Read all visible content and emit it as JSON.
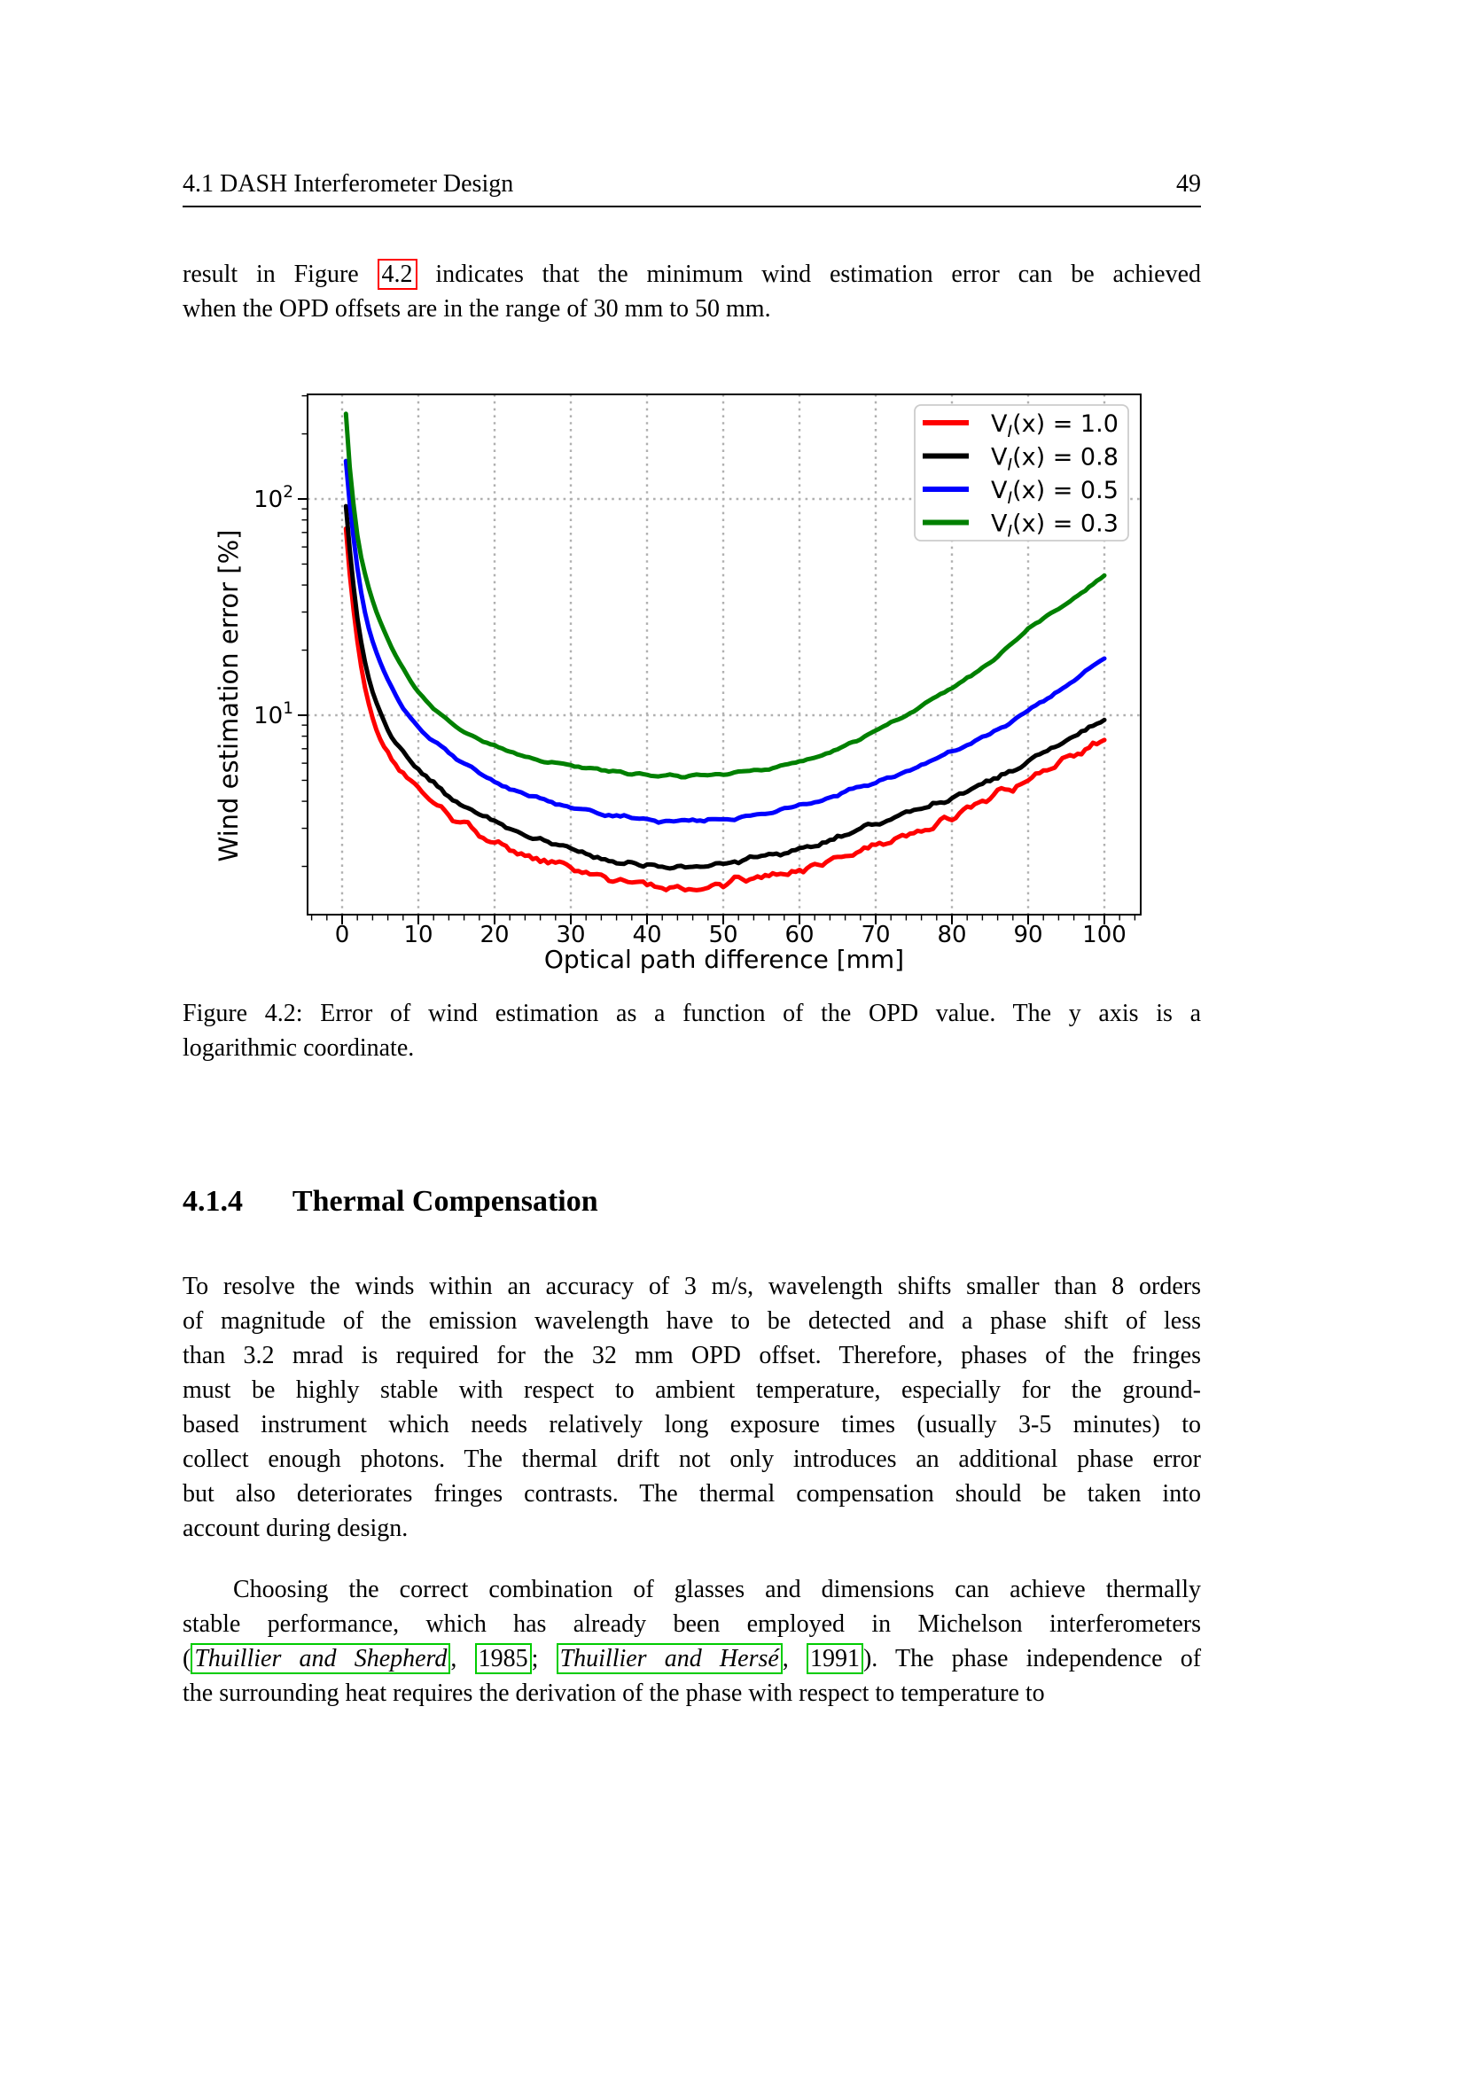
{
  "header": {
    "title": "4.1 DASH Interferometer Design",
    "page_number": "49"
  },
  "intro": {
    "lines": [
      {
        "segments": [
          {
            "text": "result in Figure "
          },
          {
            "text": "4.2",
            "style": "redbox"
          },
          {
            "text": " indicates that the minimum wind estimation error can be achieved"
          }
        ]
      },
      {
        "text": "when the OPD offsets are in the range of 30 mm to 50 mm.",
        "last": true
      }
    ]
  },
  "figure": {
    "caption_lines": [
      {
        "text": "Figure 4.2: Error of wind estimation as a function of the OPD value. The y axis is a"
      },
      {
        "text": "logarithmic coordinate.",
        "last": true
      }
    ]
  },
  "section": {
    "number": "4.1.4",
    "title": "Thermal Compensation"
  },
  "body": {
    "paragraph1": {
      "lines": [
        {
          "text": "To resolve the winds within an accuracy of 3 m/s, wavelength shifts smaller than 8 orders"
        },
        {
          "text": "of magnitude of the emission wavelength have to be detected and a phase shift of less"
        },
        {
          "text": "than 3.2 mrad is required for the 32 mm OPD offset. Therefore, phases of the fringes"
        },
        {
          "text": "must be highly stable with respect to ambient temperature, especially for the ground-"
        },
        {
          "text": "based instrument which needs relatively long exposure times (usually 3-5 minutes) to"
        },
        {
          "text": "collect enough photons. The thermal drift not only introduces an additional phase error"
        },
        {
          "text": "but also deteriorates fringes contrasts. The thermal compensation should be taken into"
        },
        {
          "text": "account during design.",
          "last": true
        }
      ]
    },
    "paragraph2": {
      "lines": [
        {
          "text": "Choosing the correct combination of glasses and dimensions can achieve thermally",
          "indent": true
        },
        {
          "text": "stable performance, which has already been employed in Michelson interferometers"
        },
        {
          "segments": [
            {
              "text": "("
            },
            {
              "text": "Thuillier and Shepherd",
              "style": "greenbox italic"
            },
            {
              "text": ", "
            },
            {
              "text": "1985",
              "style": "greenbox"
            },
            {
              "text": "; "
            },
            {
              "text": "Thuillier and Hersé",
              "style": "greenbox italic"
            },
            {
              "text": ", "
            },
            {
              "text": "1991",
              "style": "greenbox"
            },
            {
              "text": "). The phase independence of"
            }
          ]
        },
        {
          "text": "the surrounding heat requires the derivation of the phase with respect to temperature to",
          "last": true
        }
      ]
    }
  },
  "chart_data": {
    "type": "line",
    "title": "",
    "xlabel": "Optical path difference [mm]",
    "ylabel": "Wind estimation error [%]",
    "yscale": "log",
    "xlim": [
      -4.5,
      104.8
    ],
    "ylim": [
      1.17,
      306
    ],
    "x_ticks": [
      0,
      10,
      20,
      30,
      40,
      50,
      60,
      70,
      80,
      90,
      100
    ],
    "x_minor_step": 2,
    "y_ticks": [
      10,
      100
    ],
    "grid": true,
    "grid_color": "#b0b0b0",
    "legend_position": "upper right",
    "x": [
      0.5,
      1,
      2,
      3,
      4,
      5,
      6,
      8,
      10,
      12.5,
      15,
      17.5,
      20,
      25,
      30,
      35,
      40,
      45,
      50,
      55,
      60,
      65,
      70,
      75,
      80,
      85,
      90,
      95,
      100
    ],
    "series": [
      {
        "name": "V_I(x) = 1.0",
        "color": "#ff0000",
        "noise": 0.022,
        "y": [
          73,
          45,
          22,
          13.5,
          9.8,
          7.8,
          6.6,
          5.3,
          4.6,
          3.8,
          3.3,
          2.9,
          2.6,
          2.2,
          1.95,
          1.75,
          1.63,
          1.6,
          1.65,
          1.78,
          1.95,
          2.2,
          2.5,
          2.9,
          3.4,
          4.1,
          5.0,
          6.2,
          7.7
        ]
      },
      {
        "name": "V_I(x) = 0.8",
        "color": "#000000",
        "noise": 0.014,
        "y": [
          92,
          58,
          28,
          17.5,
          12.8,
          10.2,
          8.6,
          6.7,
          5.6,
          4.7,
          4.0,
          3.55,
          3.2,
          2.7,
          2.4,
          2.15,
          2.02,
          1.98,
          2.05,
          2.2,
          2.4,
          2.7,
          3.1,
          3.6,
          4.2,
          5.0,
          6.1,
          7.6,
          9.6
        ]
      },
      {
        "name": "V_I(x) = 0.5",
        "color": "#0000ff",
        "noise": 0.009,
        "y": [
          150,
          95,
          48,
          30,
          22,
          17.5,
          14.5,
          10.8,
          8.8,
          7.4,
          6.3,
          5.5,
          4.9,
          4.2,
          3.8,
          3.45,
          3.3,
          3.25,
          3.3,
          3.5,
          3.8,
          4.3,
          4.9,
          5.7,
          6.8,
          8.2,
          10.5,
          13.5,
          18.5
        ]
      },
      {
        "name": "V_I(x) = 0.3",
        "color": "#008000",
        "noise": 0.007,
        "y": [
          248,
          140,
          68,
          45,
          34,
          27,
          22.5,
          16.5,
          12.8,
          10.4,
          8.9,
          7.9,
          7.2,
          6.3,
          5.85,
          5.5,
          5.3,
          5.25,
          5.35,
          5.6,
          6.1,
          7.0,
          8.5,
          10.5,
          13.5,
          17.5,
          25,
          33,
          44
        ]
      }
    ]
  }
}
